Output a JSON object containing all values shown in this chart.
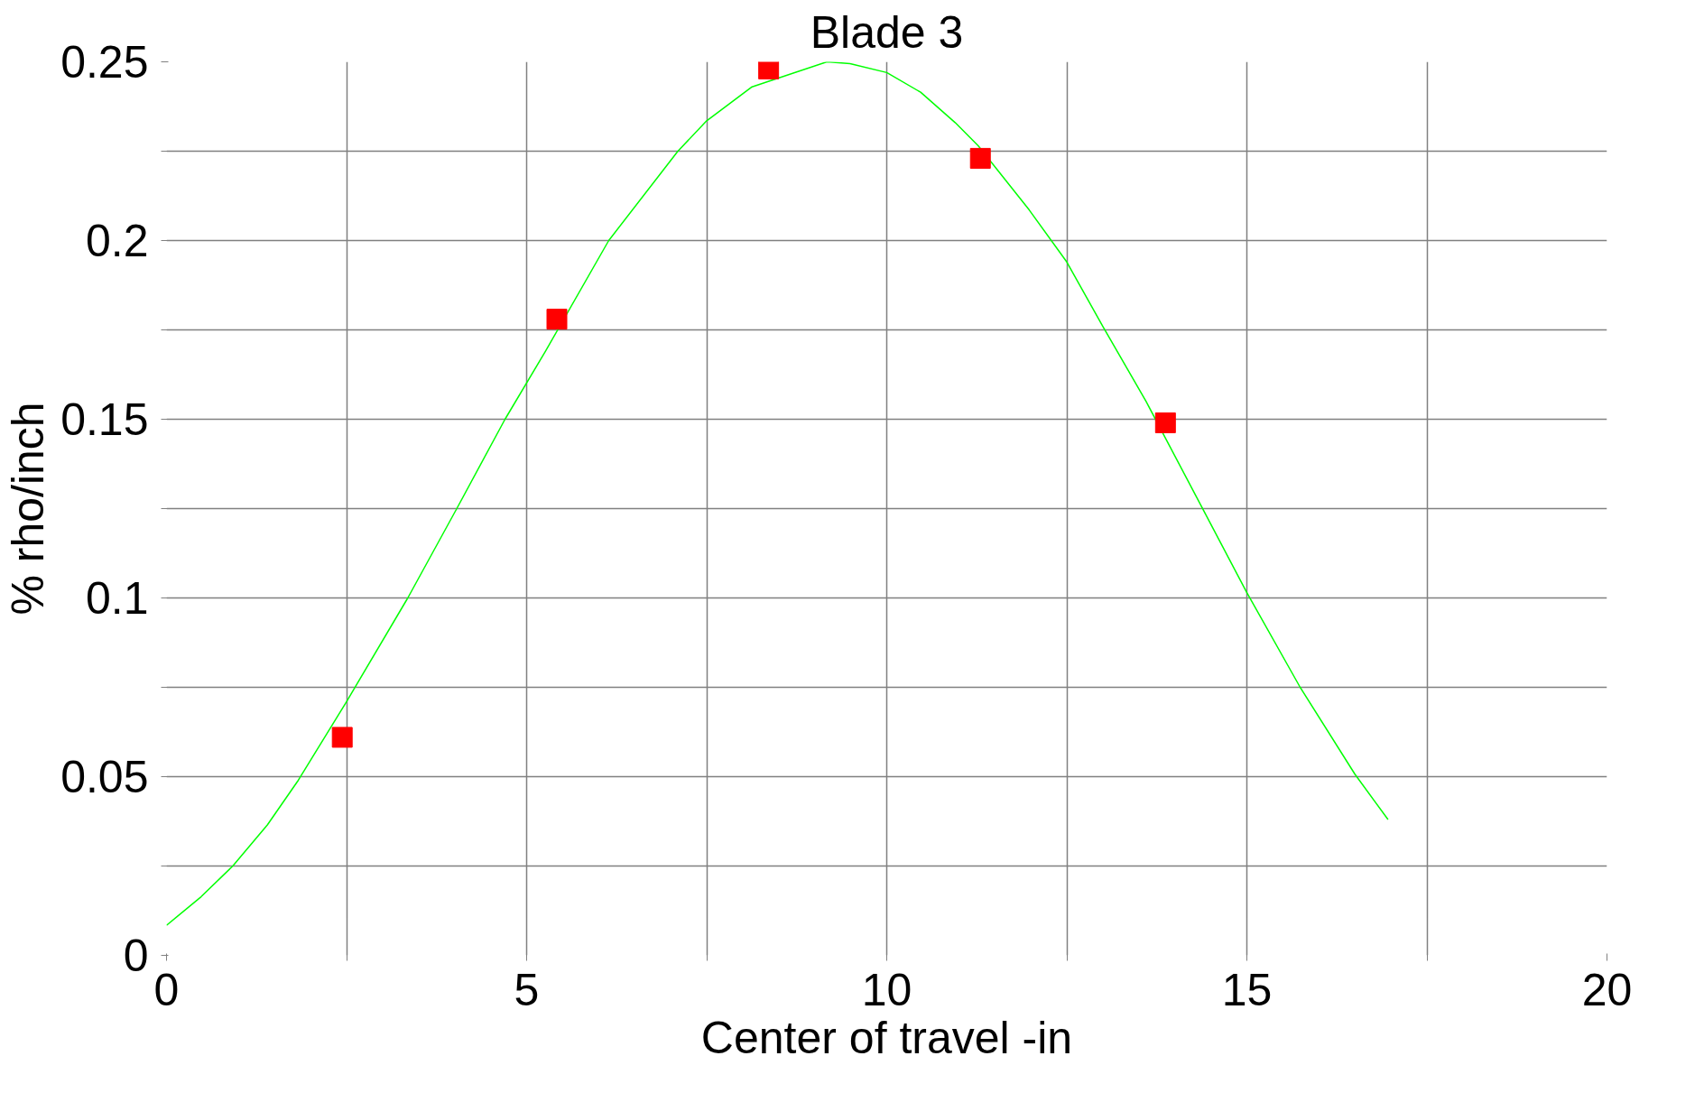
{
  "chart_data": {
    "type": "scatter",
    "title": "Blade 3",
    "xlabel": "Center of travel -in",
    "ylabel": "% rho/inch",
    "xlim": [
      0,
      20
    ],
    "ylim": [
      0,
      0.25
    ],
    "xticks": [
      0,
      {
        "value": 2.5,
        "label": null
      },
      5,
      {
        "value": 7.5,
        "label": null
      },
      10,
      {
        "value": 12.5,
        "label": null
      },
      15,
      {
        "value": 17.5,
        "label": null
      },
      20
    ],
    "yticks": [
      0,
      {
        "value": 0.025,
        "label": null
      },
      0.05,
      {
        "value": 0.075,
        "label": null
      },
      0.1,
      {
        "value": 0.125,
        "label": null
      },
      0.15,
      {
        "value": 0.175,
        "label": null
      },
      0.2,
      {
        "value": 0.225,
        "label": null
      },
      0.25
    ],
    "grid": true,
    "series": [
      {
        "type": "line",
        "color": "#00ff00",
        "line_style": "solid",
        "x": [
          0,
          0.48,
          0.92,
          1.4,
          1.83,
          2.5,
          3.35,
          4.03,
          4.7,
          5.26,
          6.14,
          7.1,
          7.5,
          8.13,
          9.17,
          9.49,
          10.0,
          10.47,
          10.95,
          11.27,
          11.98,
          12.5,
          13.0,
          13.6,
          14.36,
          15.0,
          15.74,
          16.5,
          16.96
        ],
        "values": [
          0.0084,
          0.0164,
          0.025,
          0.0365,
          0.049,
          0.071,
          0.1,
          0.125,
          0.15,
          0.169,
          0.2,
          0.225,
          0.2335,
          0.243,
          0.25,
          0.2495,
          0.247,
          0.2415,
          0.233,
          0.2265,
          0.2085,
          0.194,
          0.176,
          0.155,
          0.126,
          0.1015,
          0.075,
          0.0507,
          0.038
        ]
      },
      {
        "color": "#ff0000",
        "marker": "square",
        "x": [
          2.44,
          5.42,
          8.36,
          11.3,
          13.87
        ],
        "values": [
          0.061,
          0.178,
          0.248,
          0.223,
          0.149
        ]
      }
    ]
  }
}
